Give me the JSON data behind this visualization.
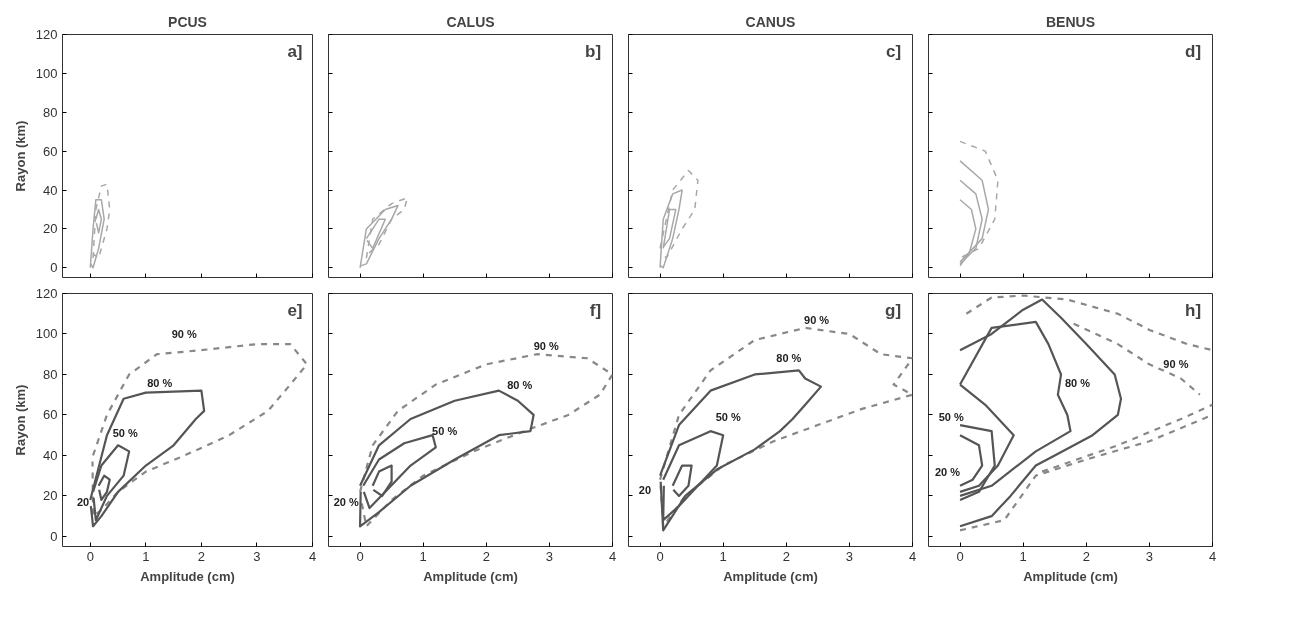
{
  "chart_data": [
    {
      "type": "line",
      "title": "PCUS",
      "ylabel": "Rayon (km)",
      "xlim": [
        -0.5,
        4
      ],
      "ylim": [
        -5,
        120
      ],
      "xticks": [
        0,
        1,
        2,
        3,
        4
      ],
      "yticks": [
        0,
        20,
        40,
        60,
        80,
        100,
        120
      ],
      "tick_labels": "y",
      "grid": false,
      "annotations": [
        "a]"
      ],
      "series": [
        {
          "color": "#a8a8a8",
          "line_style": "dashed",
          "x": [
            0.05,
            0.1,
            0.2,
            0.3,
            0.35,
            0.3,
            0.15,
            0.06
          ],
          "values": [
            5,
            30,
            42,
            43,
            30,
            20,
            5,
            7
          ]
        },
        {
          "color": "#a8a8a8",
          "line_style": "solid",
          "x": [
            0,
            0.05,
            0.1,
            0.2,
            0.25,
            0.15,
            0.05,
            0.01
          ],
          "values": [
            0,
            20,
            35,
            35,
            25,
            10,
            0,
            2
          ]
        },
        {
          "color": "#a8a8a8",
          "line_style": "solid",
          "x": [
            0.1,
            0.15,
            0.2,
            0.15,
            0.11
          ],
          "values": [
            25,
            30,
            25,
            18,
            23
          ]
        }
      ]
    },
    {
      "type": "line",
      "title": "CALUS",
      "xlim": [
        -0.5,
        4
      ],
      "ylim": [
        -5,
        120
      ],
      "xticks": [
        0,
        1,
        2,
        3,
        4
      ],
      "yticks": [
        0,
        20,
        40,
        60,
        80,
        100,
        120
      ],
      "tick_labels": false,
      "grid": false,
      "annotations": [
        "b]"
      ],
      "series": [
        {
          "color": "#a8a8a8",
          "line_style": "dashed",
          "x": [
            0.1,
            0.2,
            0.5,
            0.75,
            0.7,
            0.5,
            0.3,
            0.12
          ],
          "values": [
            5,
            25,
            33,
            36,
            30,
            25,
            12,
            7
          ]
        },
        {
          "color": "#a8a8a8",
          "line_style": "solid",
          "x": [
            0,
            0.1,
            0.4,
            0.6,
            0.5,
            0.3,
            0.1,
            0.01
          ],
          "values": [
            0,
            20,
            30,
            32,
            25,
            15,
            2,
            1
          ]
        },
        {
          "color": "#a8a8a8",
          "line_style": "solid",
          "x": [
            0.1,
            0.3,
            0.4,
            0.2,
            0.11
          ],
          "values": [
            15,
            25,
            25,
            10,
            14
          ]
        }
      ]
    },
    {
      "type": "line",
      "title": "CANUS",
      "xlim": [
        -0.5,
        4
      ],
      "ylim": [
        -5,
        120
      ],
      "xticks": [
        0,
        1,
        2,
        3,
        4
      ],
      "yticks": [
        0,
        20,
        40,
        60,
        80,
        100,
        120
      ],
      "tick_labels": false,
      "grid": false,
      "annotations": [
        "c]"
      ],
      "series": [
        {
          "color": "#a8a8a8",
          "line_style": "dashed",
          "x": [
            0,
            0.2,
            0.45,
            0.6,
            0.55,
            0.35,
            0.1,
            0.01
          ],
          "values": [
            10,
            40,
            50,
            45,
            30,
            20,
            5,
            8
          ]
        },
        {
          "color": "#a8a8a8",
          "line_style": "solid",
          "x": [
            0,
            0.05,
            0.2,
            0.35,
            0.3,
            0.2,
            0.05,
            0.01
          ],
          "values": [
            0,
            25,
            38,
            40,
            30,
            15,
            0,
            1
          ]
        },
        {
          "color": "#a8a8a8",
          "line_style": "solid",
          "x": [
            0.05,
            0.15,
            0.25,
            0.15,
            0.06
          ],
          "values": [
            10,
            30,
            30,
            15,
            11
          ]
        }
      ]
    },
    {
      "type": "line",
      "title": "BENUS",
      "xlim": [
        -0.5,
        4
      ],
      "ylim": [
        -5,
        120
      ],
      "xticks": [
        0,
        1,
        2,
        3,
        4
      ],
      "yticks": [
        0,
        20,
        40,
        60,
        80,
        100,
        120
      ],
      "tick_labels": false,
      "grid": false,
      "annotations": [
        "d]"
      ],
      "series": [
        {
          "color": "#a8a8a8",
          "line_style": "dashed",
          "x": [
            0,
            0.4,
            0.6,
            0.55,
            0.3,
            0
          ],
          "values": [
            65,
            60,
            45,
            25,
            10,
            5
          ]
        },
        {
          "color": "#a8a8a8",
          "line_style": "solid",
          "x": [
            0,
            0.35,
            0.45,
            0.35,
            0
          ],
          "values": [
            55,
            45,
            30,
            15,
            3
          ]
        },
        {
          "color": "#a8a8a8",
          "line_style": "solid",
          "x": [
            0,
            0.25,
            0.35,
            0.25,
            0
          ],
          "values": [
            45,
            38,
            25,
            10,
            2
          ]
        },
        {
          "color": "#a8a8a8",
          "line_style": "solid",
          "x": [
            0,
            0.18,
            0.25,
            0.15,
            0
          ],
          "values": [
            35,
            30,
            20,
            8,
            1
          ]
        }
      ]
    },
    {
      "type": "line",
      "xlabel": "Amplitude (cm)",
      "ylabel": "Rayon (km)",
      "xlim": [
        -0.5,
        4
      ],
      "ylim": [
        -5,
        120
      ],
      "xticks": [
        0,
        1,
        2,
        3,
        4
      ],
      "yticks": [
        0,
        20,
        40,
        60,
        80,
        100,
        120
      ],
      "grid": false,
      "annotations": [
        "e]",
        "90 %",
        "80 %",
        "50 %",
        "20"
      ],
      "series": [
        {
          "color": "#888888",
          "line_style": "dashed",
          "x": [
            0.05,
            0.3,
            0.7,
            1.2,
            2,
            3,
            3.6,
            3.9,
            3.6,
            3.2,
            2.5,
            1.7,
            1,
            0.5,
            0.2,
            0.05,
            0.04
          ],
          "values": [
            40,
            60,
            80,
            90,
            92,
            95,
            95,
            85,
            75,
            62,
            50,
            40,
            32,
            22,
            13,
            10,
            37
          ]
        },
        {
          "color": "#555555",
          "line_style": "solid",
          "x": [
            0,
            0.3,
            0.6,
            1,
            2,
            2.05,
            1.9,
            1.5,
            1,
            0.5,
            0.2,
            0.05,
            0.01
          ],
          "values": [
            18,
            50,
            68,
            71,
            72,
            62,
            58,
            45,
            35,
            22,
            10,
            5,
            15
          ]
        },
        {
          "color": "#555555",
          "line_style": "solid",
          "x": [
            0.05,
            0.2,
            0.5,
            0.7,
            0.6,
            0.3,
            0.1,
            0.06
          ],
          "values": [
            22,
            35,
            45,
            42,
            30,
            20,
            8,
            19
          ]
        },
        {
          "color": "#555555",
          "line_style": "solid",
          "x": [
            0.15,
            0.25,
            0.35,
            0.3,
            0.2,
            0.16
          ],
          "values": [
            25,
            30,
            28,
            22,
            18,
            23
          ]
        }
      ]
    },
    {
      "type": "line",
      "xlabel": "Amplitude (cm)",
      "xlim": [
        -0.5,
        4
      ],
      "ylim": [
        -5,
        120
      ],
      "xticks": [
        0,
        1,
        2,
        3,
        4
      ],
      "yticks": [
        0,
        20,
        40,
        60,
        80,
        100,
        120
      ],
      "tick_labels": "x",
      "grid": false,
      "annotations": [
        "f]",
        "90 %",
        "80 %",
        "50 %",
        "20 %"
      ],
      "series": [
        {
          "color": "#888888",
          "line_style": "dashed",
          "x": [
            0,
            0.2,
            0.6,
            1.2,
            2,
            2.8,
            3.6,
            4,
            3.8,
            3.3,
            2.6,
            1.8,
            1,
            0.5,
            0.1,
            0.01
          ],
          "values": [
            22,
            45,
            62,
            75,
            85,
            90,
            88,
            80,
            70,
            60,
            52,
            42,
            30,
            18,
            5,
            19
          ]
        },
        {
          "color": "#555555",
          "line_style": "solid",
          "x": [
            0,
            0.3,
            0.8,
            1.5,
            2.2,
            2.5,
            2.75,
            2.7,
            2.2,
            1.5,
            0.8,
            0.3,
            0,
            0.01
          ],
          "values": [
            25,
            45,
            58,
            67,
            72,
            67,
            60,
            52,
            50,
            38,
            25,
            12,
            5,
            22
          ]
        },
        {
          "color": "#555555",
          "line_style": "solid",
          "x": [
            0.05,
            0.3,
            0.7,
            1.15,
            1.2,
            0.8,
            0.4,
            0.15,
            0.06
          ],
          "values": [
            25,
            38,
            46,
            50,
            44,
            35,
            22,
            14,
            22
          ]
        },
        {
          "color": "#555555",
          "line_style": "solid",
          "x": [
            0.2,
            0.3,
            0.5,
            0.5,
            0.35,
            0.21
          ],
          "values": [
            25,
            32,
            35,
            27,
            20,
            23
          ]
        }
      ]
    },
    {
      "type": "line",
      "xlabel": "Amplitude (cm)",
      "xlim": [
        -0.5,
        4
      ],
      "ylim": [
        -5,
        120
      ],
      "xticks": [
        0,
        1,
        2,
        3,
        4
      ],
      "yticks": [
        0,
        20,
        40,
        60,
        80,
        100,
        120
      ],
      "tick_labels": "x",
      "grid": false,
      "annotations": [
        "g]",
        "90 %",
        "80 %",
        "50 %",
        "20"
      ],
      "series": [
        {
          "color": "#888888",
          "line_style": "dashed",
          "x": [
            0,
            0.3,
            0.8,
            1.5,
            2.3,
            3,
            3.5,
            4,
            3.7,
            4,
            3.2,
            2.5,
            1.8,
            1,
            0.4,
            0.05,
            0.01
          ],
          "values": [
            28,
            60,
            82,
            97,
            103,
            100,
            90,
            88,
            75,
            70,
            63,
            55,
            47,
            35,
            20,
            5,
            25
          ]
        },
        {
          "color": "#555555",
          "line_style": "solid",
          "x": [
            0,
            0.3,
            0.8,
            1.5,
            2.2,
            2.3,
            2.55,
            2.3,
            2.1,
            1.9,
            1.5,
            0.9,
            0.4,
            0.05,
            0.01
          ],
          "values": [
            30,
            55,
            72,
            80,
            82,
            78,
            74,
            65,
            58,
            52,
            43,
            33,
            20,
            3,
            27
          ]
        },
        {
          "color": "#555555",
          "line_style": "solid",
          "x": [
            0.05,
            0.3,
            0.8,
            1,
            0.9,
            0.6,
            0.3,
            0.05,
            0.06
          ],
          "values": [
            28,
            45,
            52,
            50,
            35,
            25,
            15,
            8,
            25
          ]
        },
        {
          "color": "#555555",
          "line_style": "solid",
          "x": [
            0.2,
            0.35,
            0.5,
            0.45,
            0.3,
            0.21
          ],
          "values": [
            25,
            35,
            35,
            25,
            20,
            23
          ]
        }
      ]
    },
    {
      "type": "line",
      "xlabel": "Amplitude (cm)",
      "xlim": [
        -0.5,
        4
      ],
      "ylim": [
        -5,
        120
      ],
      "xticks": [
        0,
        1,
        2,
        3,
        4
      ],
      "yticks": [
        0,
        20,
        40,
        60,
        80,
        100,
        120
      ],
      "tick_labels": "x",
      "grid": false,
      "annotations": [
        "h]",
        "80 %",
        "90 %",
        "50 %",
        "20 %"
      ],
      "series": [
        {
          "color": "#888888",
          "line_style": "dashed",
          "x": [
            0.1,
            0.5,
            1.0,
            1.7,
            2.5,
            3,
            3.6,
            4
          ],
          "values": [
            110,
            118,
            119,
            117,
            110,
            102,
            95,
            92
          ]
        },
        {
          "color": "#888888",
          "line_style": "dashed",
          "x": [
            1.8,
            2.5,
            3,
            3.5,
            3.8
          ],
          "values": [
            105,
            95,
            85,
            78,
            70
          ]
        },
        {
          "color": "#888888",
          "line_style": "dashed",
          "x": [
            0,
            0.7,
            1.2,
            2,
            3,
            4
          ],
          "values": [
            3,
            8,
            30,
            38,
            47,
            60
          ]
        },
        {
          "color": "#888888",
          "line_style": "dashed",
          "x": [
            1.3,
            2.5,
            3.5,
            4
          ],
          "values": [
            32,
            45,
            58,
            65
          ]
        },
        {
          "color": "#555555",
          "line_style": "solid",
          "x": [
            0,
            0.5,
            1,
            1.3,
            1.6,
            2,
            2.45,
            2.55,
            2.5,
            2.1,
            1.5,
            1.2,
            0.8,
            0.5,
            0
          ],
          "values": [
            92,
            100,
            112,
            117,
            108,
            95,
            80,
            68,
            60,
            50,
            40,
            35,
            20,
            10,
            5
          ]
        },
        {
          "color": "#555555",
          "line_style": "solid",
          "x": [
            0,
            0.5,
            1.2,
            1.4,
            1.6,
            1.55,
            1.7,
            1.75,
            1.2,
            0.5,
            0
          ],
          "values": [
            75,
            103,
            106,
            95,
            80,
            70,
            60,
            52,
            42,
            25,
            20
          ]
        },
        {
          "color": "#555555",
          "line_style": "solid",
          "x": [
            0,
            0.4,
            0.85,
            0.6,
            0.3,
            0
          ],
          "values": [
            75,
            65,
            50,
            35,
            25,
            22
          ]
        },
        {
          "color": "#555555",
          "line_style": "solid",
          "x": [
            0,
            0.5,
            0.55,
            0.3,
            0
          ],
          "values": [
            55,
            52,
            35,
            22,
            18
          ]
        },
        {
          "color": "#555555",
          "line_style": "solid",
          "x": [
            0,
            0.3,
            0.35,
            0.2,
            0
          ],
          "values": [
            50,
            45,
            35,
            28,
            25
          ]
        }
      ]
    }
  ]
}
